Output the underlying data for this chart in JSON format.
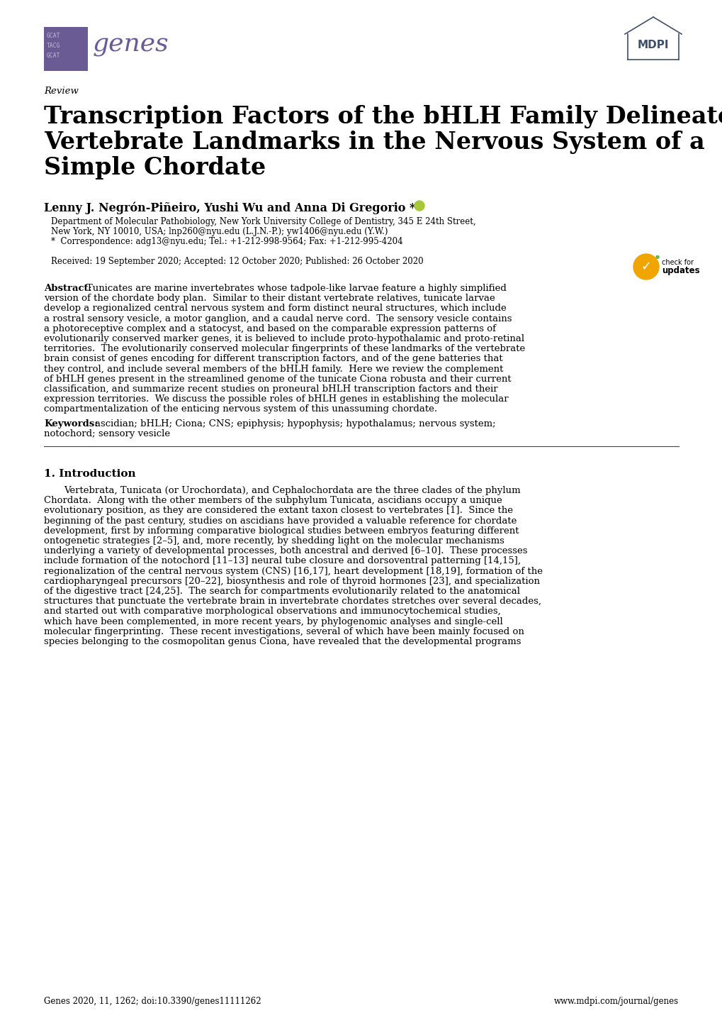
{
  "title_line1": "Transcription Factors of the bHLH Family Delineate",
  "title_line2": "Vertebrate Landmarks in the Nervous System of a",
  "title_line3": "Simple Chordate",
  "review_label": "Review",
  "authors": "Lenny J. Negrón-Piñeiro, Yushi Wu and Anna Di Gregorio *",
  "affiliation1": "Department of Molecular Pathobiology, New York University College of Dentistry, 345 E 24th Street,",
  "affiliation2": "New York, NY 10010, USA; lnp260@nyu.edu (L.J.N.-P.); yw1406@nyu.edu (Y.W.)",
  "correspondence": "*  Correspondence: adg13@nyu.edu; Tel.: +1-212-998-9564; Fax: +1-212-995-4204",
  "received": "Received: 19 September 2020; Accepted: 12 October 2020; Published: 26 October 2020",
  "abstract_label": "Abstract:",
  "keywords_label": "Keywords:",
  "keywords_text": "ascidian; bHLH; Ciona; CNS; epiphysis; hypophysis; hypothalamus; nervous system; notochord; sensory vesicle",
  "section1_title": "1. Introduction",
  "footer_left": "Genes 2020, 11, 1262; doi:10.3390/genes11111262",
  "footer_right": "www.mdpi.com/journal/genes",
  "genes_logo_color": "#6B5B95",
  "mdpi_color": "#3D4F6B",
  "background_color": "#ffffff",
  "abstract_lines": [
    "Tunicates are marine invertebrates whose tadpole-like larvae feature a highly simplified",
    "version of the chordate body plan.  Similar to their distant vertebrate relatives, tunicate larvae",
    "develop a regionalized central nervous system and form distinct neural structures, which include",
    "a rostral sensory vesicle, a motor ganglion, and a caudal nerve cord.  The sensory vesicle contains",
    "a photoreceptive complex and a statocyst, and based on the comparable expression patterns of",
    "evolutionarily conserved marker genes, it is believed to include proto-hypothalamic and proto-retinal",
    "territories.  The evolutionarily conserved molecular fingerprints of these landmarks of the vertebrate",
    "brain consist of genes encoding for different transcription factors, and of the gene batteries that",
    "they control, and include several members of the bHLH family.  Here we review the complement",
    "of bHLH genes present in the streamlined genome of the tunicate Ciona robusta and their current",
    "classification, and summarize recent studies on proneural bHLH transcription factors and their",
    "expression territories.  We discuss the possible roles of bHLH genes in establishing the molecular",
    "compartmentalization of the enticing nervous system of this unassuming chordate."
  ],
  "keywords_lines": [
    "ascidian; bHLH; Ciona; CNS; epiphysis; hypophysis; hypothalamus; nervous system;",
    "notochord; sensory vesicle"
  ],
  "intro_lines": [
    "Vertebrata, Tunicata (or Urochordata), and Cephalochordata are the three clades of the phylum",
    "Chordata.  Along with the other members of the subphylum Tunicata, ascidians occupy a unique",
    "evolutionary position, as they are considered the extant taxon closest to vertebrates [1].  Since the",
    "beginning of the past century, studies on ascidians have provided a valuable reference for chordate",
    "development, first by informing comparative biological studies between embryos featuring different",
    "ontogenetic strategies [2–5], and, more recently, by shedding light on the molecular mechanisms",
    "underlying a variety of developmental processes, both ancestral and derived [6–10].  These processes",
    "include formation of the notochord [11–13] neural tube closure and dorsoventral patterning [14,15],",
    "regionalization of the central nervous system (CNS) [16,17], heart development [18,19], formation of the",
    "cardiopharyngeal precursors [20–22], biosynthesis and role of thyroid hormones [23], and specialization",
    "of the digestive tract [24,25].  The search for compartments evolutionarily related to the anatomical",
    "structures that punctuate the vertebrate brain in invertebrate chordates stretches over several decades,",
    "and started out with comparative morphological observations and immunocytochemical studies,",
    "which have been complemented, in more recent years, by phylogenomic analyses and single-cell",
    "molecular fingerprinting.  These recent investigations, several of which have been mainly focused on",
    "species belonging to the cosmopolitan genus Ciona, have revealed that the developmental programs"
  ]
}
